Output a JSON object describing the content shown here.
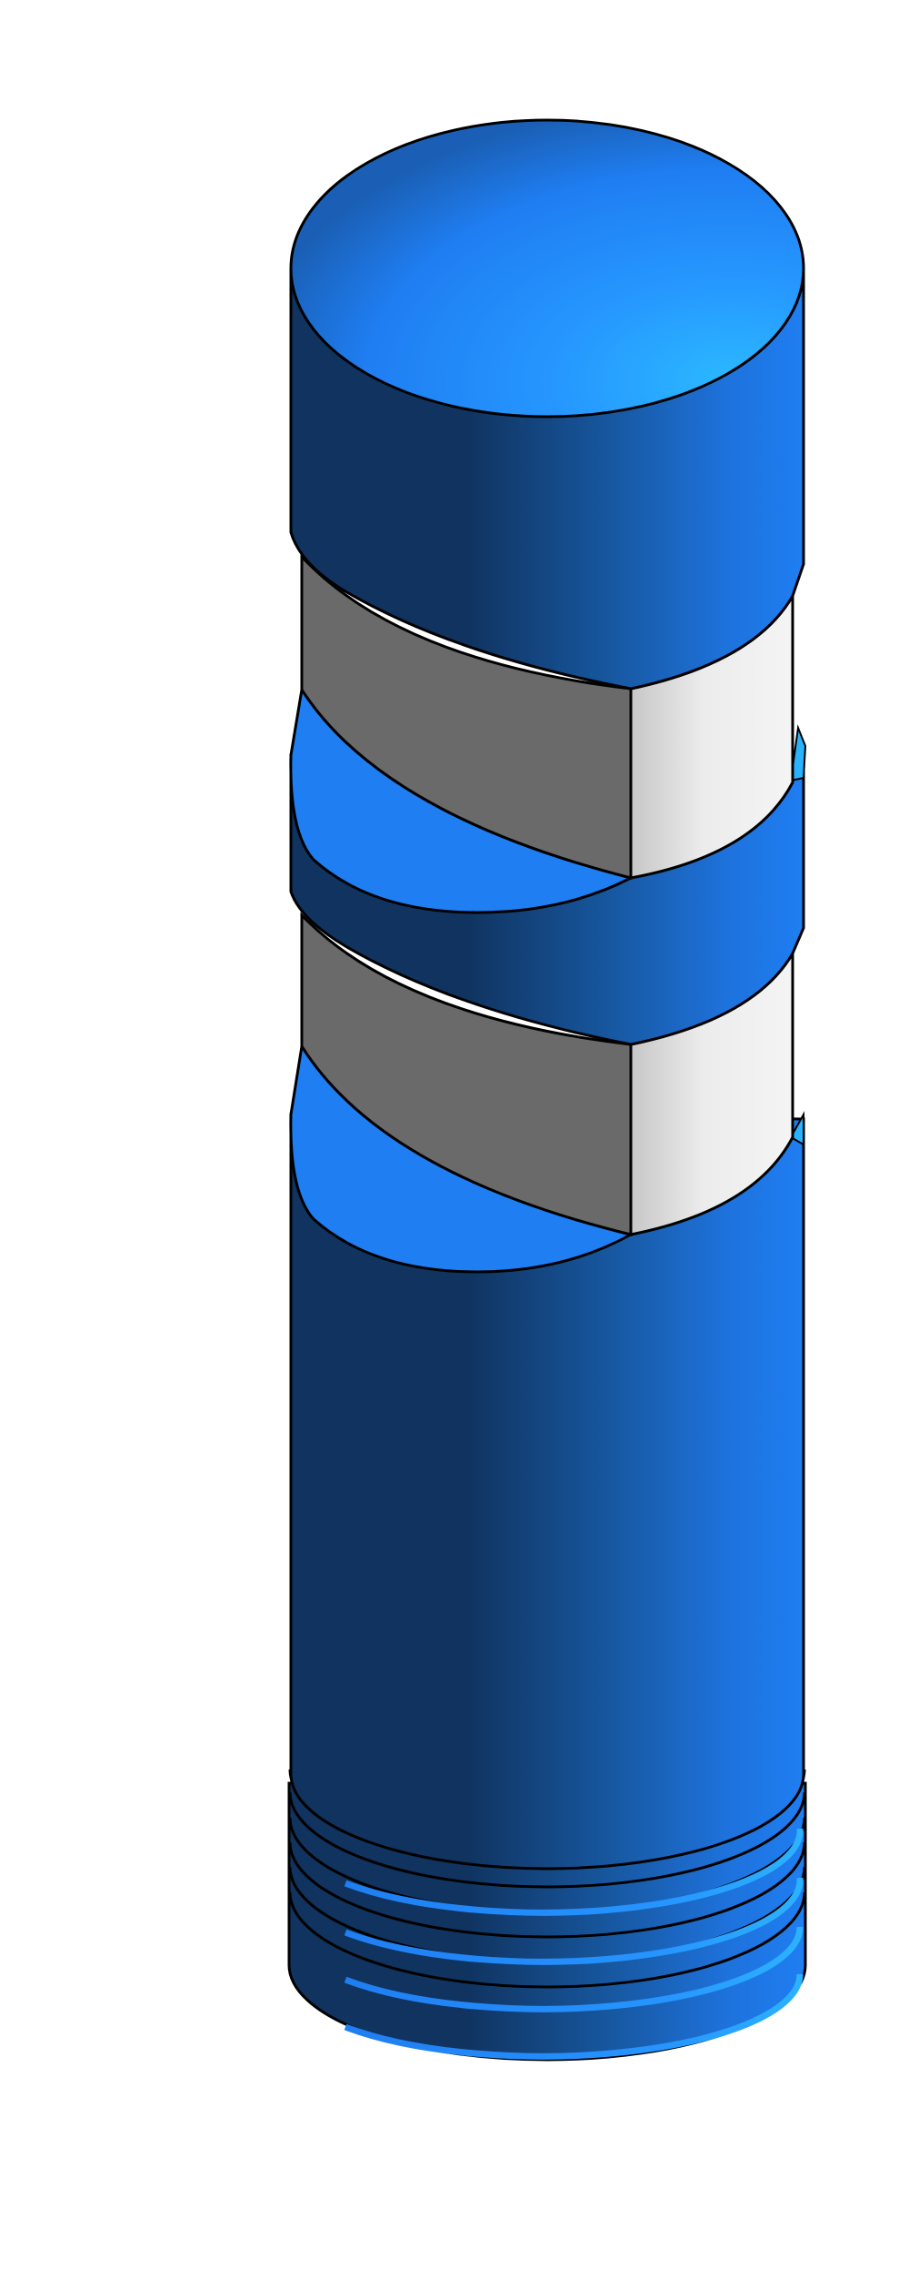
{
  "figure": {
    "subject": "cylindrical-part-with-helical-grooves",
    "colors": {
      "background": "#ffffff",
      "outline": "#000000",
      "blue_dark": "#10335f",
      "blue_mid": "#17579f",
      "blue_bright": "#1f7ef2",
      "blue_light": "#2bb2ff",
      "gray_dark": "#6a6a6a",
      "gray_light": "#f2f2f2"
    }
  }
}
